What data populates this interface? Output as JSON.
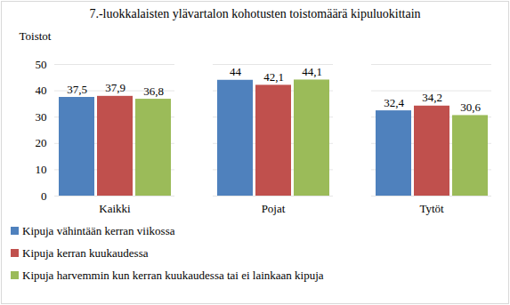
{
  "chart_data": {
    "type": "bar",
    "title": "7.-luokkalaisten ylävartalon kohotusten toistomäärä kipuluokittain",
    "y_label": "Toistot",
    "categories": [
      "Kaikki",
      "Pojat",
      "Tytöt"
    ],
    "series": [
      {
        "name": "Kipuja vähintään kerran viikossa",
        "color": "#4f81bd",
        "values": [
          37.5,
          44,
          32.4
        ],
        "value_labels": [
          "37,5",
          "44",
          "32,4"
        ]
      },
      {
        "name": "Kipuja kerran kuukaudessa",
        "color": "#c0504d",
        "values": [
          37.9,
          42.1,
          34.2
        ],
        "value_labels": [
          "37,9",
          "42,1",
          "34,2"
        ]
      },
      {
        "name": "Kipuja harvemmin kun kerran kuukaudessa tai ei lainkaan kipuja",
        "color": "#9bbb59",
        "values": [
          36.8,
          44.1,
          30.6
        ],
        "value_labels": [
          "36,8",
          "44,1",
          "30,6"
        ]
      }
    ],
    "ylim": [
      0,
      50
    ],
    "yticks": [
      0,
      10,
      20,
      30,
      40,
      50
    ],
    "grid": true,
    "data_labels": true,
    "legend": "bottom"
  }
}
